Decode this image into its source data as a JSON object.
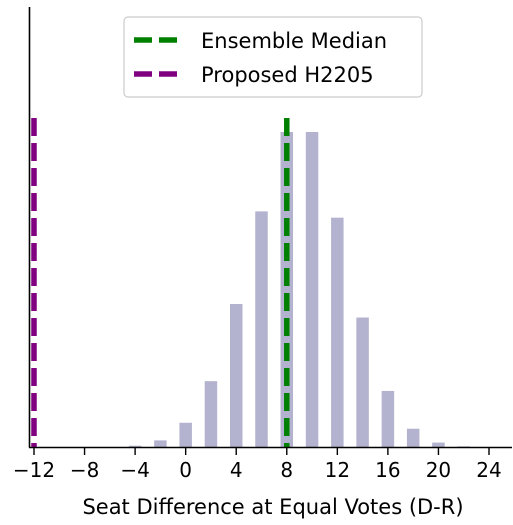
{
  "chart_data": {
    "type": "bar",
    "xlabel": "Seat Difference at Equal Votes (D-R)",
    "ylabel": "",
    "xlim": [
      -12.5,
      25
    ],
    "ylim": [
      0,
      1.0
    ],
    "xticks": [
      -12,
      -8,
      -4,
      0,
      4,
      8,
      12,
      16,
      20,
      24
    ],
    "xtick_labels": [
      "−12",
      "−8",
      "−4",
      "0",
      "4",
      "8",
      "12",
      "16",
      "20",
      "24"
    ],
    "y_ticks_shown": false,
    "grid": false,
    "bar_color": "#b3b3cf",
    "bins": [
      {
        "x": -4,
        "value": 0.004
      },
      {
        "x": -2,
        "value": 0.021
      },
      {
        "x": 0,
        "value": 0.077
      },
      {
        "x": 2,
        "value": 0.209
      },
      {
        "x": 4,
        "value": 0.454
      },
      {
        "x": 6,
        "value": 0.748
      },
      {
        "x": 8,
        "value": 1.0
      },
      {
        "x": 10,
        "value": 1.0
      },
      {
        "x": 12,
        "value": 0.728
      },
      {
        "x": 14,
        "value": 0.411
      },
      {
        "x": 16,
        "value": 0.178
      },
      {
        "x": 18,
        "value": 0.058
      },
      {
        "x": 20,
        "value": 0.014
      },
      {
        "x": 22,
        "value": 0.002
      }
    ],
    "reference_lines": [
      {
        "name": "Ensemble Median",
        "x": 8,
        "color": "#008000",
        "style": "dashed"
      },
      {
        "name": "Proposed H2205",
        "x": -12,
        "color": "#800080",
        "style": "dashed"
      }
    ],
    "legend": {
      "placement": "upper-center",
      "entries": [
        {
          "label": "Ensemble Median",
          "color": "#008000"
        },
        {
          "label": "Proposed H2205",
          "color": "#800080"
        }
      ]
    }
  }
}
